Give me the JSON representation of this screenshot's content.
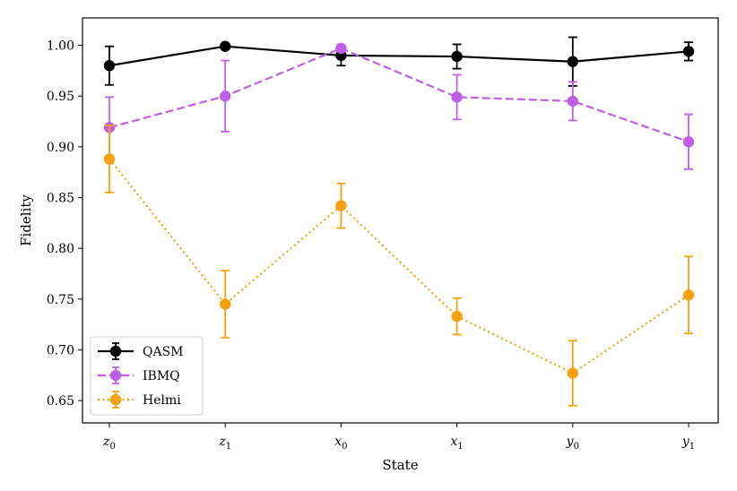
{
  "chart_data": {
    "type": "line",
    "title": "",
    "xlabel": "State",
    "ylabel": "Fidelity",
    "categories": [
      "z0",
      "z1",
      "x0",
      "x1",
      "y0",
      "y1"
    ],
    "category_labels": [
      {
        "base": "z",
        "sub": "0"
      },
      {
        "base": "z",
        "sub": "1"
      },
      {
        "base": "x",
        "sub": "0"
      },
      {
        "base": "x",
        "sub": "1"
      },
      {
        "base": "y",
        "sub": "0"
      },
      {
        "base": "y",
        "sub": "1"
      }
    ],
    "ylim": [
      0.628,
      1.027
    ],
    "yticks": [
      0.65,
      0.7,
      0.75,
      0.8,
      0.85,
      0.9,
      0.95,
      1.0
    ],
    "ytick_labels": [
      "0.65",
      "0.70",
      "0.75",
      "0.80",
      "0.85",
      "0.90",
      "0.95",
      "1.00"
    ],
    "grid": false,
    "legend_position": "bottom-left",
    "series": [
      {
        "name": "QASM",
        "color": "#000000",
        "dash": "solid",
        "values": [
          0.98,
          0.999,
          0.99,
          0.989,
          0.984,
          0.994
        ],
        "errors": [
          0.019,
          0.001,
          0.01,
          0.012,
          0.024,
          0.009
        ]
      },
      {
        "name": "IBMQ",
        "color": "#bf5fe8",
        "dash": "dashed",
        "values": [
          0.919,
          0.95,
          0.997,
          0.949,
          0.945,
          0.905
        ],
        "errors": [
          0.03,
          0.035,
          0.003,
          0.022,
          0.019,
          0.027
        ]
      },
      {
        "name": "Helmi",
        "color": "#f5a00e",
        "dash": "dotted",
        "values": [
          0.888,
          0.745,
          0.842,
          0.733,
          0.677,
          0.754
        ],
        "errors": [
          0.033,
          0.033,
          0.022,
          0.018,
          0.032,
          0.038
        ]
      }
    ]
  }
}
